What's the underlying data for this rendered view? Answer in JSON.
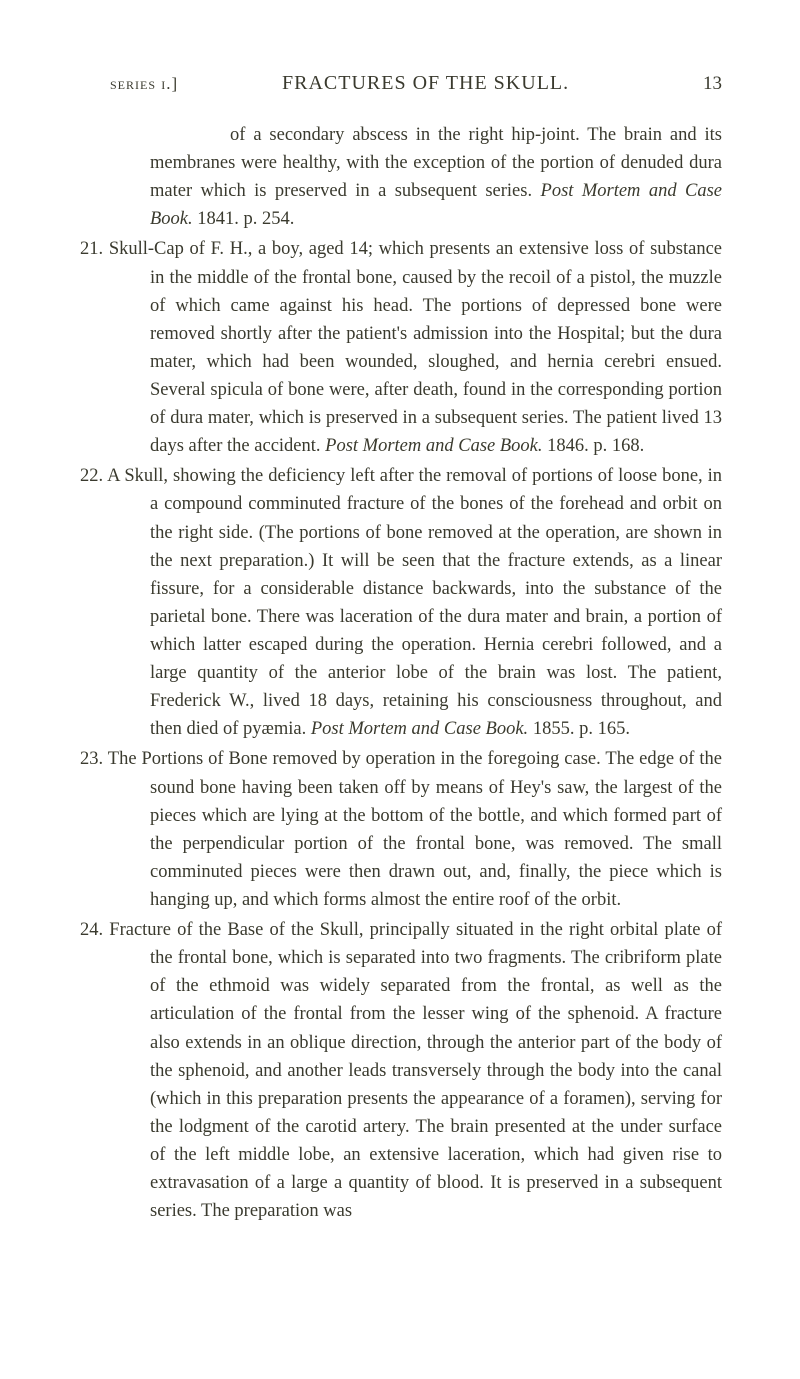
{
  "header": {
    "series": "series i.]",
    "title": "FRACTURES OF THE SKULL.",
    "page": "13"
  },
  "entries": [
    {
      "num": "",
      "text_parts": [
        {
          "t": "of a secondary abscess in the right hip-joint. The brain and its membranes were healthy, with the exception of the portion of denuded dura mater which is preserved in a subsequent series. ",
          "i": false
        },
        {
          "t": "Post Mortem and Case Book.",
          "i": true
        },
        {
          "t": " 1841. p. 254.",
          "i": false
        }
      ],
      "class": "entry-first continuation"
    },
    {
      "num": "21.",
      "text_parts": [
        {
          "t": "Skull-Cap of F. H., a boy, aged 14; which presents an extensive loss of substance in the middle of the frontal bone, caused by the recoil of a pistol, the muzzle of which came against his head. The portions of depressed bone were removed shortly after the patient's admission into the Hospital; but the dura mater, which had been wounded, sloughed, and hernia cerebri ensued. Several spicula of bone were, after death, found in the corresponding portion of dura mater, which is preserved in a subsequent series. The patient lived 13 days after the accident. ",
          "i": false
        },
        {
          "t": "Post Mortem and Case Book.",
          "i": true
        },
        {
          "t": " 1846. p. 168.",
          "i": false
        }
      ],
      "class": "entry-hang"
    },
    {
      "num": "22.",
      "text_parts": [
        {
          "t": "A Skull, showing the deficiency left after the removal of portions of loose bone, in a compound comminuted fracture of the bones of the forehead and orbit on the right side. (The portions of bone removed at the operation, are shown in the next preparation.) It will be seen that the fracture extends, as a linear fissure, for a considerable distance backwards, into the substance of the parietal bone. There was laceration of the dura mater and brain, a portion of which latter escaped during the operation. Hernia cerebri followed, and a large quantity of the anterior lobe of the brain was lost. The patient, Frederick W., lived 18 days, retaining his consciousness throughout, and then died of pyæmia. ",
          "i": false
        },
        {
          "t": "Post Mortem and Case Book.",
          "i": true
        },
        {
          "t": " 1855. p. 165.",
          "i": false
        }
      ],
      "class": "entry-hang"
    },
    {
      "num": "23.",
      "text_parts": [
        {
          "t": "The Portions of Bone removed by operation in the foregoing case. The edge of the sound bone having been taken off by means of Hey's saw, the largest of the pieces which are lying at the bottom of the bottle, and which formed part of the perpendicular portion of the frontal bone, was removed. The small comminuted pieces were then drawn out, and, finally, the piece which is hanging up, and which forms almost the entire roof of the orbit.",
          "i": false
        }
      ],
      "class": "entry-hang"
    },
    {
      "num": "24.",
      "text_parts": [
        {
          "t": "Fracture of the Base of the Skull, principally situated in the right orbital plate of the frontal bone, which is separated into two fragments. The cribriform plate of the ethmoid was widely separated from the frontal, as well as the articulation of the frontal from the lesser wing of the sphenoid. A fracture also extends in an oblique direction, through the anterior part of the body of the sphenoid, and another leads transversely through the body into the canal (which in this preparation presents the appearance of a foramen), serving for the lodgment of the carotid artery. The brain presented at the under surface of the left middle lobe, an extensive laceration, which had given rise to extravasation of a large a quantity of blood. It is preserved in a subsequent series. The preparation was",
          "i": false
        }
      ],
      "class": "entry-hang"
    }
  ]
}
